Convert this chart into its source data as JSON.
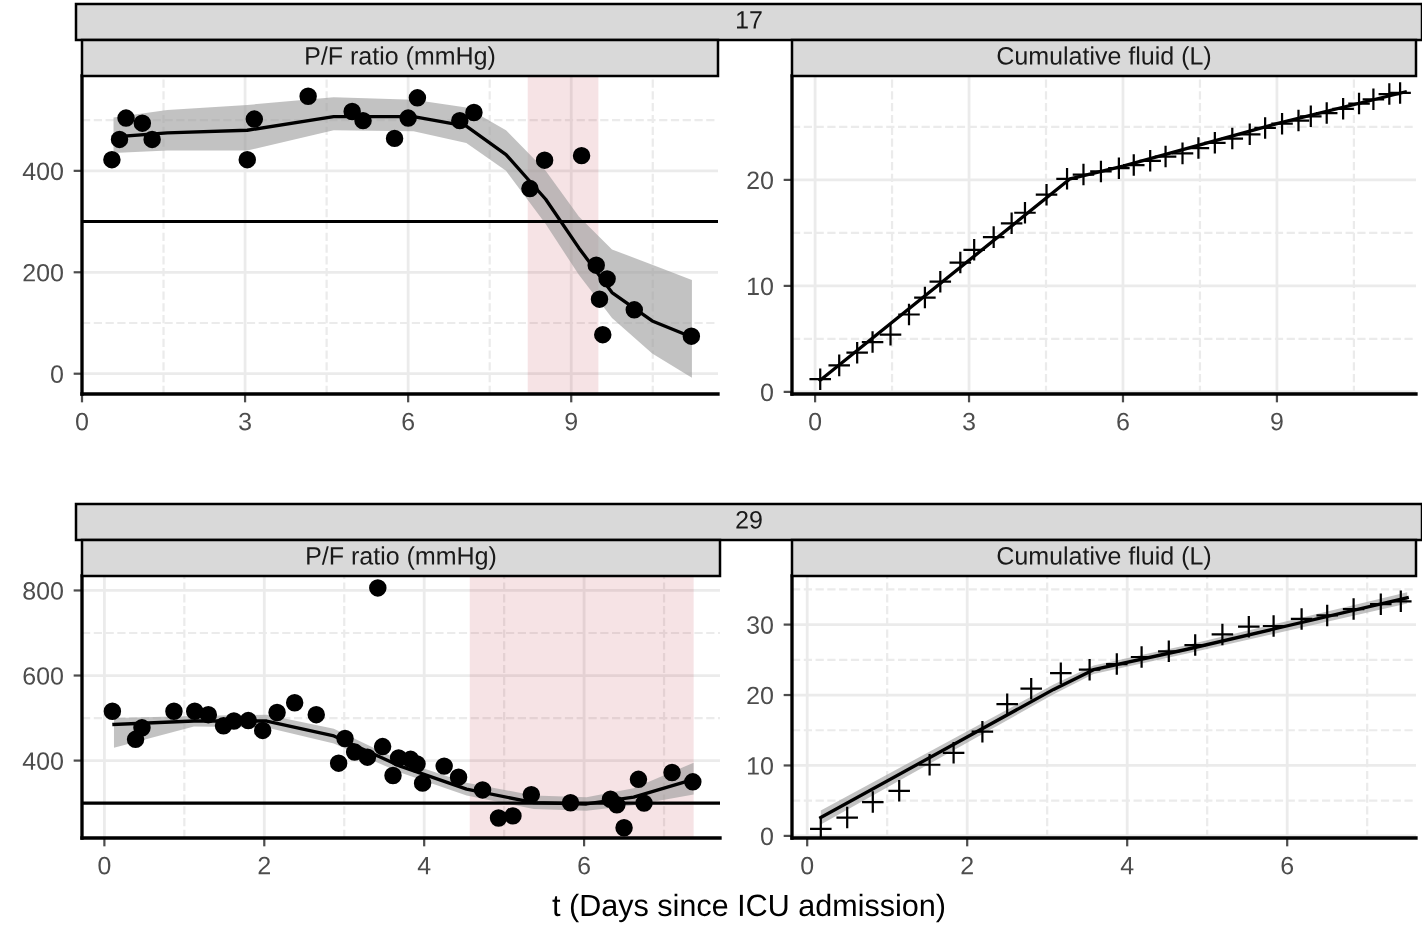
{
  "chart_data": [
    {
      "type": "other",
      "title": "17"
    },
    {
      "type": "scatter",
      "title": "P/F ratio (mmHg)",
      "xlim": [
        0,
        11.7
      ],
      "ylim": [
        -40,
        587
      ],
      "xticks": [
        0,
        3,
        6,
        9
      ],
      "yticks": [
        0,
        200,
        400
      ],
      "grid": true,
      "series": [
        {
          "type": "scatter",
          "color": "#000000",
          "marker": "circle",
          "x": [
            0.55,
            0.69,
            0.81,
            1.11,
            1.29,
            3.04,
            3.17,
            4.16,
            4.97,
            5.17,
            5.75,
            6.0,
            6.17,
            6.95,
            7.21,
            8.24,
            8.51,
            9.19,
            9.46,
            9.66,
            9.52,
            9.58,
            10.16,
            11.21
          ],
          "values": [
            422,
            462,
            504,
            494,
            462,
            422,
            502,
            547,
            517,
            499,
            464,
            504,
            544,
            499,
            515,
            365,
            421,
            430,
            214,
            187,
            147,
            77,
            126,
            74
          ]
        },
        {
          "type": "line",
          "color": "#000000",
          "x": [
            0.58,
            1.57,
            3.04,
            4.63,
            6.1,
            7.07,
            7.8,
            8.53,
            9.14,
            9.75,
            10.49,
            11.22
          ],
          "values": [
            467,
            475,
            480,
            507,
            507,
            488,
            432,
            344,
            248,
            160,
            104,
            72
          ],
          "lower": [
            435,
            440,
            440,
            480,
            478,
            455,
            400,
            295,
            195,
            110,
            40,
            -8
          ],
          "upper": [
            505,
            520,
            530,
            545,
            540,
            525,
            480,
            400,
            310,
            245,
            215,
            185
          ]
        }
      ],
      "ref_lines": [
        {
          "axis": "y",
          "value": 300,
          "color": "#000000"
        }
      ],
      "bands": [
        {
          "axis": "x",
          "from": 8.2,
          "to": 9.5,
          "color": "#b2182b"
        }
      ]
    },
    {
      "type": "scatter",
      "title": "Cumulative fluid (L)",
      "xlim": [
        -0.45,
        11.71
      ],
      "ylim": [
        -0.2,
        29.8
      ],
      "xticks": [
        0,
        3,
        6,
        9
      ],
      "yticks": [
        0,
        10,
        20
      ],
      "grid": true,
      "series": [
        {
          "type": "scatter",
          "color": "#000000",
          "marker": "cross",
          "x": [
            0.1,
            0.47,
            0.82,
            1.12,
            1.47,
            1.83,
            2.14,
            2.44,
            2.83,
            3.1,
            3.48,
            3.83,
            4.09,
            4.51,
            4.91,
            5.23,
            5.57,
            5.92,
            6.21,
            6.53,
            6.83,
            7.16,
            7.47,
            7.79,
            8.13,
            8.47,
            8.77,
            9.1,
            9.42,
            9.66,
            9.97,
            10.29,
            10.6,
            10.88,
            11.19,
            11.4
          ],
          "values": [
            1.2,
            2.5,
            3.7,
            4.7,
            5.4,
            7.3,
            8.9,
            10.4,
            12.2,
            13.4,
            14.6,
            15.9,
            16.9,
            18.6,
            20.1,
            20.5,
            20.8,
            21.1,
            21.4,
            21.8,
            22.2,
            22.5,
            23.0,
            23.5,
            23.9,
            24.3,
            24.9,
            25.3,
            25.6,
            26.0,
            26.3,
            26.7,
            27.2,
            27.6,
            28.1,
            28.2
          ]
        },
        {
          "type": "line",
          "color": "#000000",
          "x": [
            0.1,
            4.97,
            6,
            9,
            11.5
          ],
          "values": [
            1.1,
            20.1,
            21.3,
            25.3,
            28.3
          ]
        }
      ]
    },
    {
      "type": "other",
      "title": "29"
    },
    {
      "type": "scatter",
      "title": "P/F ratio (mmHg)",
      "xlabel": "t (Days since ICU admission)",
      "xlim": [
        -0.28,
        7.7
      ],
      "ylim": [
        218,
        834
      ],
      "xticks": [
        0,
        2,
        4,
        6
      ],
      "yticks": [
        400,
        600,
        800
      ],
      "grid": true,
      "series": [
        {
          "type": "scatter",
          "color": "#000000",
          "marker": "circle",
          "x": [
            0.1,
            0.39,
            0.47,
            0.87,
            1.13,
            1.3,
            1.49,
            1.62,
            1.8,
            1.98,
            2.16,
            2.38,
            2.65,
            2.93,
            3.01,
            3.13,
            3.29,
            3.42,
            3.48,
            3.61,
            3.68,
            3.83,
            3.91,
            3.98,
            4.25,
            4.43,
            4.73,
            4.93,
            5.11,
            5.34,
            5.83,
            6.33,
            6.41,
            6.5,
            6.68,
            6.75,
            7.1,
            7.36
          ],
          "values": [
            516,
            450,
            477,
            516,
            516,
            508,
            482,
            493,
            494,
            471,
            513,
            536,
            508,
            394,
            452,
            420,
            408,
            806,
            433,
            365,
            406,
            403,
            392,
            347,
            387,
            361,
            331,
            265,
            270,
            320,
            301,
            309,
            296,
            242,
            356,
            300,
            372,
            350
          ]
        },
        {
          "type": "line",
          "color": "#000000",
          "x": [
            0.12,
            1.12,
            2.03,
            2.87,
            3.7,
            4.53,
            5.37,
            6.03,
            6.62,
            7.37
          ],
          "values": [
            485,
            493,
            493,
            458,
            387,
            333,
            301,
            298,
            314,
            356
          ],
          "lower": [
            430,
            480,
            478,
            440,
            372,
            318,
            286,
            282,
            295,
            320
          ],
          "upper": [
            500,
            505,
            508,
            475,
            400,
            348,
            318,
            314,
            335,
            395
          ]
        }
      ],
      "ref_lines": [
        {
          "axis": "y",
          "value": 300,
          "color": "#000000"
        }
      ],
      "bands": [
        {
          "axis": "x",
          "from": 4.57,
          "to": 7.37,
          "color": "#b2182b"
        }
      ]
    },
    {
      "type": "scatter",
      "title": "Cumulative fluid (L)",
      "xlim": [
        -0.19,
        7.61
      ],
      "ylim": [
        -0.3,
        36.9
      ],
      "xticks": [
        0,
        2,
        4,
        6
      ],
      "yticks": [
        0,
        10,
        20,
        30
      ],
      "grid": true,
      "series": [
        {
          "type": "scatter",
          "color": "#000000",
          "marker": "cross",
          "x": [
            0.17,
            0.5,
            0.82,
            1.15,
            1.53,
            1.83,
            2.19,
            2.5,
            2.8,
            3.17,
            3.53,
            3.87,
            4.18,
            4.52,
            4.85,
            5.19,
            5.52,
            5.83,
            6.18,
            6.5,
            6.83,
            7.17,
            7.42
          ],
          "values": [
            1.0,
            2.6,
            4.8,
            6.4,
            10.1,
            11.8,
            14.8,
            18.7,
            20.9,
            23.1,
            23.6,
            24.4,
            25.4,
            26.2,
            27.1,
            28.6,
            29.7,
            29.8,
            30.8,
            31.3,
            32.2,
            32.9,
            33.3
          ]
        },
        {
          "type": "line",
          "color": "#000000",
          "x": [
            0.17,
            3.08,
            3.58,
            4.75,
            7.5
          ],
          "values": [
            2.6,
            20.8,
            23.6,
            26.5,
            33.8
          ],
          "lower": [
            1.6,
            20.1,
            23.0,
            25.9,
            33.0
          ],
          "upper": [
            3.6,
            21.5,
            24.2,
            27.1,
            34.6
          ]
        }
      ]
    }
  ]
}
